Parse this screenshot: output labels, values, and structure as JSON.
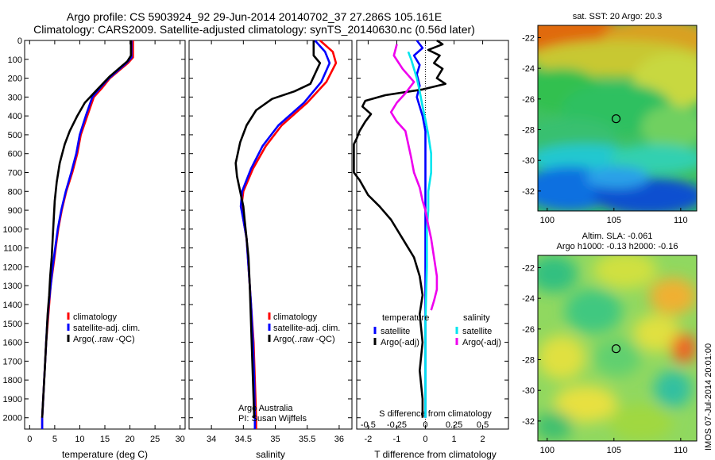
{
  "title_line1": "Argo profile: CS 5903924_92 29-Jun-2014 20140702_37 27.286S 105.161E",
  "title_line2": "Climatology: CARS2009. Satellite-adjusted climatology: synTS_20140630.nc (0.56d later)",
  "timestamp": "IMOS 07-Jul-2014 20:01:00",
  "colors": {
    "climatology": "#ff0000",
    "satellite": "#0000ff",
    "argo": "#000000",
    "sal_satellite": "#00e5ee",
    "sal_argo": "#ee00ee"
  },
  "chart_data": [
    {
      "id": "temperature",
      "type": "line",
      "xlabel": "temperature (deg C)",
      "xlim": [
        -1,
        31
      ],
      "ylim": [
        2060,
        0
      ],
      "xticks": [
        0,
        5,
        10,
        15,
        20,
        25,
        30
      ],
      "yticks": [
        0,
        100,
        200,
        300,
        400,
        500,
        600,
        700,
        800,
        900,
        1000,
        1100,
        1200,
        1300,
        1400,
        1500,
        1600,
        1700,
        1800,
        1900,
        2000
      ],
      "legend": [
        "climatology",
        "satellite-adj. clim.",
        "Argo(..raw -QC)"
      ],
      "series": [
        {
          "name": "climatology",
          "color": "#ff0000",
          "points": [
            [
              20.6,
              0
            ],
            [
              20.6,
              90
            ],
            [
              19.6,
              120
            ],
            [
              16,
              200
            ],
            [
              14.5,
              250
            ],
            [
              12.8,
              300
            ],
            [
              11.5,
              400
            ],
            [
              10.2,
              500
            ],
            [
              9.5,
              600
            ],
            [
              8.5,
              700
            ],
            [
              7.3,
              800
            ],
            [
              6.4,
              900
            ],
            [
              5.7,
              1000
            ],
            [
              5.2,
              1100
            ],
            [
              4.7,
              1200
            ],
            [
              4.2,
              1300
            ],
            [
              3.9,
              1400
            ],
            [
              3.6,
              1500
            ],
            [
              3.3,
              1600
            ],
            [
              3.1,
              1700
            ],
            [
              2.9,
              1800
            ],
            [
              2.7,
              1900
            ],
            [
              2.5,
              2000
            ],
            [
              2.5,
              2060
            ]
          ]
        },
        {
          "name": "satellite-adj. clim.",
          "color": "#0000ff",
          "points": [
            [
              20.3,
              0
            ],
            [
              20.3,
              90
            ],
            [
              19.3,
              120
            ],
            [
              15.8,
              200
            ],
            [
              14.1,
              250
            ],
            [
              12.5,
              300
            ],
            [
              11.2,
              400
            ],
            [
              10,
              500
            ],
            [
              9.3,
              600
            ],
            [
              8.3,
              700
            ],
            [
              7.2,
              800
            ],
            [
              6.3,
              900
            ],
            [
              5.6,
              1000
            ],
            [
              5.1,
              1100
            ],
            [
              4.6,
              1200
            ],
            [
              4.2,
              1300
            ],
            [
              3.8,
              1400
            ],
            [
              3.5,
              1500
            ],
            [
              3.3,
              1600
            ],
            [
              3.1,
              1700
            ],
            [
              2.9,
              1800
            ],
            [
              2.7,
              1900
            ],
            [
              2.5,
              2000
            ],
            [
              2.5,
              2060
            ]
          ]
        },
        {
          "name": "Argo(..raw -QC)",
          "color": "#000000",
          "points": [
            [
              20.2,
              0
            ],
            [
              20.2,
              80
            ],
            [
              19.5,
              110
            ],
            [
              16,
              190
            ],
            [
              13.5,
              260
            ],
            [
              11,
              330
            ],
            [
              9.5,
              400
            ],
            [
              8,
              480
            ],
            [
              7,
              550
            ],
            [
              6,
              650
            ],
            [
              5.4,
              750
            ],
            [
              5,
              850
            ],
            [
              4.8,
              950
            ],
            [
              4.6,
              1050
            ],
            [
              4.4,
              1150
            ],
            [
              4.1,
              1250
            ],
            [
              3.9,
              1350
            ],
            [
              3.6,
              1450
            ],
            [
              3.4,
              1550
            ],
            [
              3.2,
              1650
            ],
            [
              3,
              1750
            ],
            [
              2.8,
              1850
            ],
            [
              2.6,
              1950
            ],
            [
              2.5,
              2000
            ]
          ]
        }
      ]
    },
    {
      "id": "salinity",
      "type": "line",
      "xlabel": "salinity",
      "xlim": [
        33.65,
        36.2
      ],
      "ylim": [
        2060,
        0
      ],
      "xticks": [
        34,
        34.5,
        35,
        35.5,
        36
      ],
      "legend": [
        "climatology",
        "satellite-adj. clim.",
        "Argo(..raw -QC)"
      ],
      "annotation": [
        "Argo Australia",
        "PI: Susan Wijffels"
      ],
      "series": [
        {
          "name": "climatology",
          "color": "#ff0000",
          "points": [
            [
              35.7,
              0
            ],
            [
              35.9,
              60
            ],
            [
              35.95,
              120
            ],
            [
              35.8,
              220
            ],
            [
              35.5,
              330
            ],
            [
              35.1,
              450
            ],
            [
              34.85,
              560
            ],
            [
              34.65,
              680
            ],
            [
              34.5,
              800
            ],
            [
              34.47,
              880
            ],
            [
              34.5,
              950
            ],
            [
              34.55,
              1050
            ],
            [
              34.58,
              1200
            ],
            [
              34.62,
              1400
            ],
            [
              34.66,
              1600
            ],
            [
              34.68,
              1800
            ],
            [
              34.7,
              2000
            ],
            [
              34.7,
              2060
            ]
          ]
        },
        {
          "name": "satellite-adj. clim.",
          "color": "#0000ff",
          "points": [
            [
              35.62,
              0
            ],
            [
              35.78,
              60
            ],
            [
              35.85,
              120
            ],
            [
              35.72,
              220
            ],
            [
              35.45,
              330
            ],
            [
              35.05,
              450
            ],
            [
              34.8,
              560
            ],
            [
              34.62,
              680
            ],
            [
              34.48,
              800
            ],
            [
              34.46,
              880
            ],
            [
              34.5,
              950
            ],
            [
              34.55,
              1050
            ],
            [
              34.58,
              1200
            ],
            [
              34.62,
              1400
            ],
            [
              34.65,
              1600
            ],
            [
              34.67,
              1800
            ],
            [
              34.68,
              2000
            ],
            [
              34.68,
              2060
            ]
          ]
        },
        {
          "name": "Argo(..raw -QC)",
          "color": "#000000",
          "points": [
            [
              35.6,
              0
            ],
            [
              35.6,
              80
            ],
            [
              35.7,
              120
            ],
            [
              35.55,
              230
            ],
            [
              35.3,
              270
            ],
            [
              34.95,
              310
            ],
            [
              34.7,
              370
            ],
            [
              34.55,
              450
            ],
            [
              34.45,
              540
            ],
            [
              34.38,
              650
            ],
            [
              34.4,
              720
            ],
            [
              34.45,
              800
            ],
            [
              34.5,
              880
            ],
            [
              34.52,
              950
            ],
            [
              34.55,
              1050
            ],
            [
              34.58,
              1150
            ],
            [
              34.6,
              1300
            ],
            [
              34.62,
              1500
            ],
            [
              34.64,
              1700
            ],
            [
              34.66,
              1900
            ],
            [
              34.67,
              2000
            ]
          ]
        }
      ]
    },
    {
      "id": "difference",
      "type": "line",
      "xlabel": "T difference from climatology",
      "xlabel_top": "S difference from climatology",
      "xlim": [
        -2.4,
        2.9
      ],
      "ylim": [
        2060,
        0
      ],
      "xticks": [
        -2,
        -1,
        0,
        1,
        2
      ],
      "s_ticks": [
        {
          "label": "-0.5",
          "value": -2.0
        },
        {
          "label": "-0.25",
          "value": -1.0
        },
        {
          "label": "0",
          "value": 0
        },
        {
          "label": "0.25",
          "value": 1.0
        },
        {
          "label": "0.5",
          "value": 2.0
        }
      ],
      "legend_groups": [
        {
          "title": "temperature",
          "items": [
            {
              "label": "satellite",
              "color": "#0000ff"
            },
            {
              "label": "Argo(-adj)",
              "color": "#000000"
            }
          ]
        },
        {
          "title": "salinity",
          "items": [
            {
              "label": "satellite",
              "color": "#00e5ee"
            },
            {
              "label": "Argo(-adj)",
              "color": "#ee00ee"
            }
          ]
        }
      ],
      "series": [
        {
          "name": "T satellite",
          "color": "#0000ff",
          "points": [
            [
              -0.3,
              0
            ],
            [
              -0.1,
              40
            ],
            [
              -0.4,
              80
            ],
            [
              -0.2,
              130
            ],
            [
              -0.3,
              180
            ],
            [
              -0.2,
              240
            ],
            [
              -0.3,
              300
            ],
            [
              -0.2,
              350
            ],
            [
              -0.1,
              400
            ],
            [
              0,
              480
            ],
            [
              0,
              600
            ],
            [
              0,
              800
            ],
            [
              0,
              1000
            ],
            [
              0,
              1200
            ],
            [
              0,
              1500
            ],
            [
              0,
              1800
            ],
            [
              0,
              2000
            ]
          ]
        },
        {
          "name": "T Argo(-adj)",
          "color": "#000000",
          "points": [
            [
              0.4,
              0
            ],
            [
              0.6,
              20
            ],
            [
              0.1,
              50
            ],
            [
              0.5,
              80
            ],
            [
              0.3,
              120
            ],
            [
              0.6,
              150
            ],
            [
              0.4,
              200
            ],
            [
              0.7,
              230
            ],
            [
              -0.1,
              260
            ],
            [
              -1.4,
              290
            ],
            [
              -2.1,
              320
            ],
            [
              -2.2,
              350
            ],
            [
              -1.9,
              390
            ],
            [
              -2.1,
              430
            ],
            [
              -2.3,
              480
            ],
            [
              -2.4,
              520
            ],
            [
              -2.5,
              550
            ],
            [
              -2.5,
              700
            ],
            [
              -2.3,
              740
            ],
            [
              -2.0,
              820
            ],
            [
              -1.6,
              880
            ],
            [
              -1.2,
              950
            ],
            [
              -0.8,
              1050
            ],
            [
              -0.4,
              1150
            ],
            [
              -0.2,
              1250
            ],
            [
              -0.1,
              1350
            ],
            [
              -0.2,
              1450
            ],
            [
              -0.1,
              1600
            ],
            [
              -0.2,
              1750
            ],
            [
              -0.1,
              1900
            ],
            [
              -0.1,
              2000
            ]
          ]
        },
        {
          "name": "S satellite",
          "color": "#00e5ee",
          "points": [
            [
              -0.6,
              60
            ],
            [
              -0.5,
              100
            ],
            [
              -0.4,
              150
            ],
            [
              -0.3,
              200
            ],
            [
              -0.2,
              270
            ],
            [
              -0.1,
              350
            ],
            [
              0,
              420
            ],
            [
              0.1,
              500
            ],
            [
              0.2,
              600
            ],
            [
              0.2,
              700
            ],
            [
              0.1,
              800
            ],
            [
              0.1,
              900
            ],
            [
              0.05,
              1000
            ],
            [
              0.05,
              1200
            ],
            [
              0,
              1500
            ],
            [
              0,
              1800
            ],
            [
              0,
              2000
            ]
          ]
        },
        {
          "name": "S Argo(-adj)",
          "color": "#ee00ee",
          "points": [
            [
              -1.0,
              20
            ],
            [
              -1.1,
              80
            ],
            [
              -0.8,
              150
            ],
            [
              -0.4,
              220
            ],
            [
              -0.7,
              280
            ],
            [
              -1.0,
              330
            ],
            [
              -1.2,
              380
            ],
            [
              -1.0,
              430
            ],
            [
              -0.7,
              480
            ],
            [
              -0.6,
              550
            ],
            [
              -0.5,
              620
            ],
            [
              -0.4,
              700
            ],
            [
              -0.2,
              780
            ],
            [
              -0.1,
              850
            ],
            [
              0,
              900
            ],
            [
              0.1,
              980
            ],
            [
              0.2,
              1050
            ],
            [
              0.3,
              1150
            ],
            [
              0.4,
              1250
            ],
            [
              0.4,
              1320
            ],
            [
              0.3,
              1380
            ],
            [
              0.2,
              1430
            ]
          ]
        }
      ]
    },
    {
      "id": "sst_map",
      "type": "heatmap",
      "title": "sat. SST: 20 Argo: 20.3",
      "xlim": [
        99.3,
        111.2
      ],
      "ylim": [
        -33.3,
        -21.2
      ],
      "xticks": [
        100,
        105,
        110
      ],
      "yticks": [
        -22,
        -24,
        -26,
        -28,
        -30,
        -32
      ],
      "marker": {
        "lon": 105.161,
        "lat": -27.286
      }
    },
    {
      "id": "sla_map",
      "type": "heatmap",
      "title_lines": [
        "Altim. SLA: -0.061",
        "Argo h1000: -0.13 h2000: -0.16"
      ],
      "xlim": [
        99.3,
        111.2
      ],
      "ylim": [
        -33.3,
        -21.2
      ],
      "xticks": [
        100,
        105,
        110
      ],
      "yticks": [
        -22,
        -24,
        -26,
        -28,
        -30,
        -32
      ],
      "marker": {
        "lon": 105.161,
        "lat": -27.286
      }
    }
  ]
}
